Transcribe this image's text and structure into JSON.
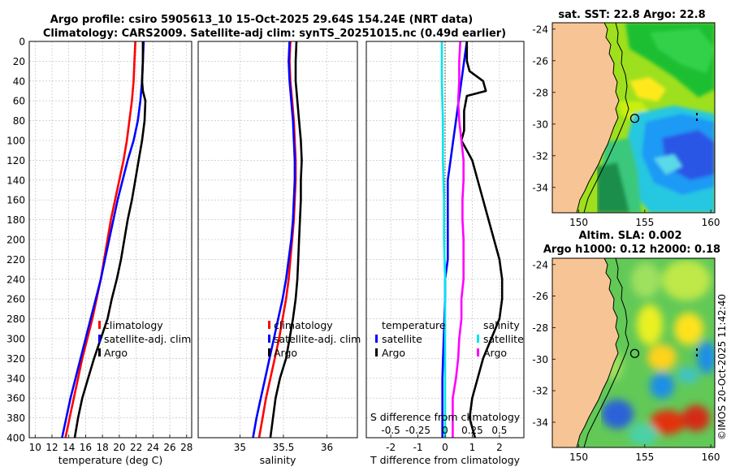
{
  "title": {
    "line1": "Argo profile: csiro 5905613_10 15-Oct-2025 29.64S 154.24E (NRT data)",
    "line2": "Climatology: CARS2009. Satellite-adj clim: synTS_20251015.nc (0.49d earlier)"
  },
  "timestamp": "©IMOS 20-Oct-2025 11:42:40",
  "colors": {
    "climatology": "#ff0000",
    "satellite": "#0000ff",
    "argo": "#000000",
    "salinity_sat": "#00e5ee",
    "salinity_argo": "#ff00ff",
    "land": "#f7c595",
    "grid": "#bbbbbb"
  },
  "chart_data": [
    {
      "type": "line",
      "name": "temperature",
      "xlabel": "temperature (deg C)",
      "xlim": [
        9.3,
        28.6
      ],
      "ylim": [
        0,
        400
      ],
      "xticks": [
        10,
        12,
        14,
        16,
        18,
        20,
        22,
        24,
        26,
        28
      ],
      "yticks": [
        0,
        20,
        40,
        60,
        80,
        100,
        120,
        140,
        160,
        180,
        200,
        220,
        240,
        260,
        280,
        300,
        320,
        340,
        360,
        380,
        400
      ],
      "legend": [
        "climatology",
        "satellite-adj. clim",
        "Argo"
      ],
      "series": [
        {
          "name": "climatology",
          "color": "#ff0000",
          "points": [
            [
              21.9,
              0
            ],
            [
              21.8,
              20
            ],
            [
              21.7,
              40
            ],
            [
              21.5,
              60
            ],
            [
              21.2,
              80
            ],
            [
              20.9,
              100
            ],
            [
              20.5,
              120
            ],
            [
              20.0,
              140
            ],
            [
              19.5,
              160
            ],
            [
              19.0,
              180
            ],
            [
              18.6,
              200
            ],
            [
              18.2,
              220
            ],
            [
              17.8,
              240
            ],
            [
              17.3,
              260
            ],
            [
              16.8,
              280
            ],
            [
              16.2,
              300
            ],
            [
              15.6,
              320
            ],
            [
              15.1,
              340
            ],
            [
              14.6,
              360
            ],
            [
              14.1,
              380
            ],
            [
              13.6,
              400
            ]
          ]
        },
        {
          "name": "satellite-adj. clim",
          "color": "#0000ff",
          "points": [
            [
              22.9,
              0
            ],
            [
              22.8,
              20
            ],
            [
              22.7,
              40
            ],
            [
              22.5,
              60
            ],
            [
              22.2,
              80
            ],
            [
              21.7,
              100
            ],
            [
              21.0,
              120
            ],
            [
              20.4,
              140
            ],
            [
              19.8,
              160
            ],
            [
              19.3,
              180
            ],
            [
              18.8,
              200
            ],
            [
              18.3,
              220
            ],
            [
              17.8,
              240
            ],
            [
              17.2,
              260
            ],
            [
              16.6,
              280
            ],
            [
              16.0,
              300
            ],
            [
              15.4,
              320
            ],
            [
              14.8,
              340
            ],
            [
              14.2,
              360
            ],
            [
              13.7,
              380
            ],
            [
              13.2,
              400
            ]
          ]
        },
        {
          "name": "Argo",
          "color": "#000000",
          "points": [
            [
              22.8,
              0
            ],
            [
              22.8,
              20
            ],
            [
              22.7,
              40
            ],
            [
              22.8,
              50
            ],
            [
              23.1,
              60
            ],
            [
              23.0,
              80
            ],
            [
              22.7,
              100
            ],
            [
              22.3,
              120
            ],
            [
              21.9,
              140
            ],
            [
              21.5,
              160
            ],
            [
              21.0,
              180
            ],
            [
              20.6,
              200
            ],
            [
              20.2,
              220
            ],
            [
              19.7,
              240
            ],
            [
              19.1,
              260
            ],
            [
              18.6,
              280
            ],
            [
              17.8,
              300
            ],
            [
              17.0,
              320
            ],
            [
              16.3,
              340
            ],
            [
              15.6,
              360
            ],
            [
              15.1,
              380
            ],
            [
              14.7,
              400
            ]
          ]
        }
      ]
    },
    {
      "type": "line",
      "name": "salinity",
      "xlabel": "salinity",
      "xlim": [
        34.52,
        36.35
      ],
      "ylim": [
        0,
        400
      ],
      "xticks": [
        35,
        35.5,
        36
      ],
      "legend": [
        "climatology",
        "satellite-adj. clim",
        "Argo"
      ],
      "series": [
        {
          "name": "climatology",
          "color": "#ff0000",
          "points": [
            [
              35.58,
              0
            ],
            [
              35.57,
              20
            ],
            [
              35.58,
              40
            ],
            [
              35.6,
              60
            ],
            [
              35.62,
              80
            ],
            [
              35.63,
              100
            ],
            [
              35.64,
              120
            ],
            [
              35.64,
              140
            ],
            [
              35.63,
              160
            ],
            [
              35.62,
              180
            ],
            [
              35.6,
              200
            ],
            [
              35.58,
              220
            ],
            [
              35.56,
              240
            ],
            [
              35.53,
              260
            ],
            [
              35.49,
              280
            ],
            [
              35.45,
              300
            ],
            [
              35.4,
              320
            ],
            [
              35.35,
              340
            ],
            [
              35.3,
              360
            ],
            [
              35.26,
              380
            ],
            [
              35.22,
              400
            ]
          ]
        },
        {
          "name": "satellite-adj. clim",
          "color": "#0000ff",
          "points": [
            [
              35.57,
              0
            ],
            [
              35.56,
              20
            ],
            [
              35.57,
              40
            ],
            [
              35.59,
              60
            ],
            [
              35.61,
              80
            ],
            [
              35.62,
              100
            ],
            [
              35.63,
              120
            ],
            [
              35.63,
              140
            ],
            [
              35.62,
              160
            ],
            [
              35.61,
              180
            ],
            [
              35.59,
              200
            ],
            [
              35.56,
              220
            ],
            [
              35.53,
              240
            ],
            [
              35.49,
              260
            ],
            [
              35.44,
              280
            ],
            [
              35.39,
              300
            ],
            [
              35.34,
              320
            ],
            [
              35.29,
              340
            ],
            [
              35.24,
              360
            ],
            [
              35.19,
              380
            ],
            [
              35.15,
              400
            ]
          ]
        },
        {
          "name": "Argo",
          "color": "#000000",
          "points": [
            [
              35.65,
              0
            ],
            [
              35.64,
              20
            ],
            [
              35.64,
              40
            ],
            [
              35.66,
              60
            ],
            [
              35.68,
              80
            ],
            [
              35.7,
              100
            ],
            [
              35.71,
              120
            ],
            [
              35.7,
              140
            ],
            [
              35.7,
              160
            ],
            [
              35.69,
              180
            ],
            [
              35.68,
              200
            ],
            [
              35.67,
              220
            ],
            [
              35.66,
              240
            ],
            [
              35.64,
              260
            ],
            [
              35.61,
              280
            ],
            [
              35.57,
              300
            ],
            [
              35.53,
              320
            ],
            [
              35.46,
              340
            ],
            [
              35.41,
              360
            ],
            [
              35.38,
              380
            ],
            [
              35.35,
              400
            ]
          ]
        }
      ]
    },
    {
      "type": "line",
      "name": "difference",
      "xlabel": "T difference from climatology",
      "xlabel_top": "S difference from climatology",
      "xlim": [
        -2.9,
        2.9
      ],
      "ylim": [
        0,
        400
      ],
      "xticks": [
        -2,
        -1,
        0,
        1,
        2
      ],
      "xticks_s": [
        -0.5,
        -0.25,
        0,
        0.25,
        0.5
      ],
      "xtick_labels_s": [
        "-0.5",
        "-0.25",
        "0",
        "0.25",
        "0.5"
      ],
      "legend_t_title": "temperature",
      "legend_s_title": "salinity",
      "legend": [
        "satellite",
        "Argo",
        "satellite",
        "Argo"
      ],
      "series": [
        {
          "name": "temperature satellite",
          "color": "#0000ff",
          "points": [
            [
              0.8,
              0
            ],
            [
              0.7,
              20
            ],
            [
              0.6,
              40
            ],
            [
              0.5,
              60
            ],
            [
              0.4,
              80
            ],
            [
              0.3,
              100
            ],
            [
              0.2,
              120
            ],
            [
              0.1,
              140
            ],
            [
              0.1,
              160
            ],
            [
              0.1,
              180
            ],
            [
              0.1,
              200
            ],
            [
              0.1,
              220
            ],
            [
              0.0,
              240
            ],
            [
              0.0,
              260
            ],
            [
              -0.05,
              300
            ],
            [
              -0.1,
              340
            ],
            [
              -0.1,
              400
            ]
          ]
        },
        {
          "name": "temperature Argo",
          "color": "#000000",
          "points": [
            [
              0.8,
              0
            ],
            [
              0.8,
              20
            ],
            [
              0.9,
              30
            ],
            [
              1.4,
              40
            ],
            [
              1.5,
              50
            ],
            [
              0.8,
              55
            ],
            [
              0.7,
              70
            ],
            [
              0.7,
              90
            ],
            [
              0.6,
              100
            ],
            [
              0.8,
              110
            ],
            [
              1.0,
              120
            ],
            [
              1.2,
              140
            ],
            [
              1.4,
              160
            ],
            [
              1.6,
              180
            ],
            [
              1.8,
              200
            ],
            [
              2.0,
              220
            ],
            [
              2.1,
              240
            ],
            [
              2.1,
              260
            ],
            [
              2.0,
              280
            ],
            [
              1.7,
              300
            ],
            [
              1.4,
              320
            ],
            [
              1.2,
              340
            ],
            [
              1.0,
              360
            ],
            [
              0.9,
              380
            ],
            [
              1.1,
              400
            ]
          ]
        },
        {
          "name": "salinity satellite",
          "color": "#00e5ee",
          "points": [
            [
              -0.03,
              0
            ],
            [
              -0.03,
              40
            ],
            [
              -0.02,
              80
            ],
            [
              -0.02,
              120
            ],
            [
              -0.01,
              160
            ],
            [
              -0.01,
              200
            ],
            [
              0.0,
              240
            ],
            [
              0.0,
              280
            ],
            [
              0.0,
              320
            ],
            [
              0.0,
              360
            ],
            [
              0.0,
              400
            ]
          ]
        },
        {
          "name": "salinity Argo",
          "color": "#ff00ff",
          "points": [
            [
              0.14,
              0
            ],
            [
              0.13,
              20
            ],
            [
              0.13,
              40
            ],
            [
              0.12,
              60
            ],
            [
              0.13,
              80
            ],
            [
              0.15,
              100
            ],
            [
              0.17,
              120
            ],
            [
              0.17,
              140
            ],
            [
              0.16,
              160
            ],
            [
              0.16,
              180
            ],
            [
              0.17,
              200
            ],
            [
              0.17,
              220
            ],
            [
              0.17,
              240
            ],
            [
              0.15,
              260
            ],
            [
              0.15,
              280
            ],
            [
              0.13,
              300
            ],
            [
              0.12,
              320
            ],
            [
              0.1,
              340
            ],
            [
              0.07,
              360
            ],
            [
              0.07,
              380
            ],
            [
              0.07,
              400
            ]
          ]
        }
      ]
    },
    {
      "type": "heatmap",
      "name": "sst_map",
      "title": "sat. SST: 22.8 Argo: 22.8",
      "xlim": [
        148,
        160.3
      ],
      "ylim": [
        -35.6,
        -23.6
      ],
      "xticks": [
        150,
        155,
        160
      ],
      "yticks": [
        -24,
        -26,
        -28,
        -30,
        -32,
        -34
      ],
      "marker": [
        154.24,
        -29.64
      ]
    },
    {
      "type": "heatmap",
      "name": "sla_map",
      "title_line1": "Altim. SLA: 0.002",
      "title_line2": "Argo h1000: 0.12 h2000: 0.18",
      "xlim": [
        148,
        160.3
      ],
      "ylim": [
        -35.6,
        -23.6
      ],
      "xticks": [
        150,
        155,
        160
      ],
      "yticks": [
        -24,
        -26,
        -28,
        -30,
        -32,
        -34
      ],
      "marker": [
        154.24,
        -29.64
      ]
    }
  ]
}
